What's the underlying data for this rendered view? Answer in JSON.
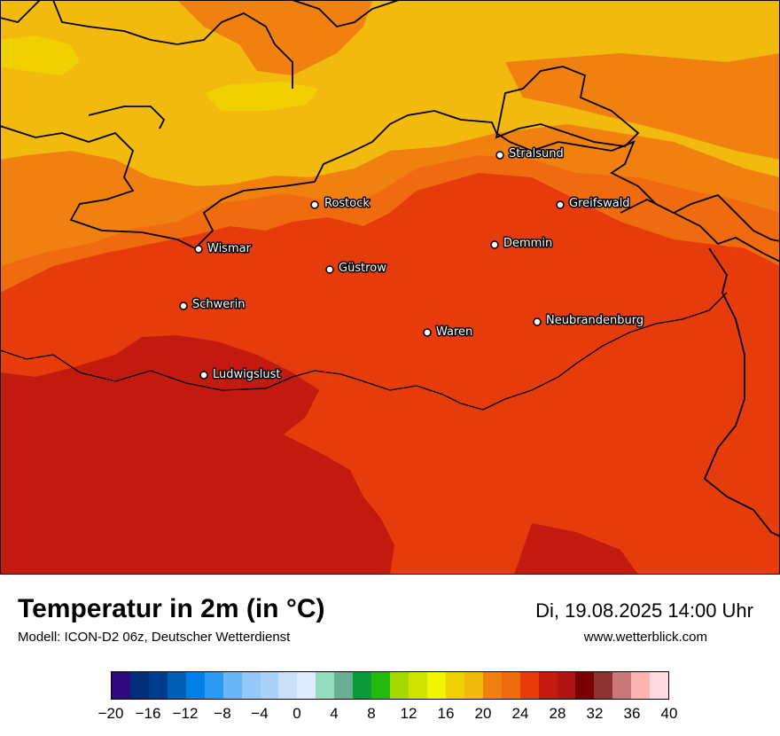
{
  "title": "Temperatur in 2m (in °C)",
  "model": "Modell: ICON-D2 06z, Deutscher Wetterdienst",
  "datetime": "Di, 19.08.2025 14:00 Uhr",
  "website": "www.wetterblick.com",
  "colors": {
    "t16_18": "#f0d000",
    "t18_20": "#f2b90e",
    "t20_22": "#f08010",
    "t22_24": "#f06a0f",
    "t24_26": "#e63c0c",
    "t26_28": "#c21a0e",
    "t28_30": "#b01412",
    "coast": "#000000",
    "city_marker": "#ffffff"
  },
  "cities": [
    {
      "name": "Stralsund"
    },
    {
      "name": "Rostock"
    },
    {
      "name": "Greifswald"
    },
    {
      "name": "Demmin"
    },
    {
      "name": "Wismar"
    },
    {
      "name": "Güstrow"
    },
    {
      "name": "Schwerin"
    },
    {
      "name": "Waren"
    },
    {
      "name": "Neubrandenburg"
    },
    {
      "name": "Ludwigslust"
    }
  ],
  "legend": {
    "ticks": [
      "−20",
      "−16",
      "−12",
      "−8",
      "−4",
      "0",
      "4",
      "8",
      "12",
      "16",
      "20",
      "24",
      "28",
      "32",
      "36",
      "40"
    ],
    "colors": [
      "#2e0a7c",
      "#002f78",
      "#003c8c",
      "#005fb4",
      "#0080e6",
      "#2a9af2",
      "#6ab4f8",
      "#94c8f8",
      "#a8d2f8",
      "#c8e0fa",
      "#dfeafc",
      "#93dcbc",
      "#6aaf94",
      "#0a9a3a",
      "#23b80c",
      "#a3d900",
      "#cde400",
      "#f0f500",
      "#f0d000",
      "#f2b90e",
      "#f08010",
      "#f06a0f",
      "#e63c0c",
      "#c21a0e",
      "#b01412",
      "#7a0000",
      "#8c3232",
      "#c87878",
      "#ffb4b4",
      "#ffdce0"
    ]
  }
}
